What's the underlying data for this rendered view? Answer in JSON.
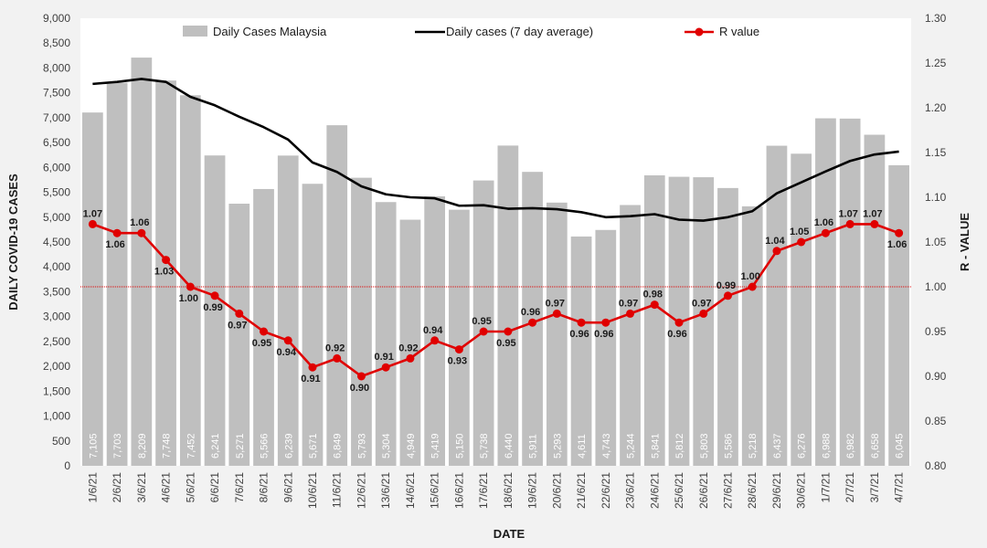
{
  "chart_data": {
    "type": "bar",
    "xlabel": "DATE",
    "ylabel": "DAILY COVID-19 CASES",
    "y2label": "R - VALUE",
    "ylim": [
      0,
      9000
    ],
    "y2lim": [
      0.8,
      1.3
    ],
    "yticks": [
      "0",
      "500",
      "1,000",
      "1,500",
      "2,000",
      "2,500",
      "3,000",
      "3,500",
      "4,000",
      "4,500",
      "5,000",
      "5,500",
      "6,000",
      "6,500",
      "7,000",
      "7,500",
      "8,000",
      "8,500",
      "9,000"
    ],
    "y2ticks": [
      "0.80",
      "0.85",
      "0.90",
      "0.95",
      "1.00",
      "1.05",
      "1.10",
      "1.15",
      "1.20",
      "1.25",
      "1.30"
    ],
    "reference_line_r": 1.0,
    "legend_position": "top",
    "categories": [
      "1/6/21",
      "2/6/21",
      "3/6/21",
      "4/6/21",
      "5/6/21",
      "6/6/21",
      "7/6/21",
      "8/6/21",
      "9/6/21",
      "10/6/21",
      "11/6/21",
      "12/6/21",
      "13/6/21",
      "14/6/21",
      "15/6/21",
      "16/6/21",
      "17/6/21",
      "18/6/21",
      "19/6/21",
      "20/6/21",
      "21/6/21",
      "22/6/21",
      "23/6/21",
      "24/6/21",
      "25/6/21",
      "26/6/21",
      "27/6/21",
      "28/6/21",
      "29/6/21",
      "30/6/21",
      "1/7/21",
      "2/7/21",
      "3/7/21",
      "4/7/21"
    ],
    "series": [
      {
        "name": "Daily Cases Malaysia",
        "type": "bar",
        "axis": "left",
        "color": "#bfbfbf",
        "values": [
          7105,
          7703,
          8209,
          7748,
          7452,
          6241,
          5271,
          5566,
          6239,
          5671,
          6849,
          5793,
          5304,
          4949,
          5419,
          5150,
          5738,
          6440,
          5911,
          5293,
          4611,
          4743,
          5244,
          5841,
          5812,
          5803,
          5586,
          5218,
          6437,
          6276,
          6988,
          6982,
          6658,
          6045
        ],
        "labels": [
          "7,105",
          "7,703",
          "8,209",
          "7,748",
          "7,452",
          "6,241",
          "5,271",
          "5,566",
          "6,239",
          "5,671",
          "6,849",
          "5,793",
          "5,304",
          "4,949",
          "5,419",
          "5,150",
          "5,738",
          "6,440",
          "5,911",
          "5,293",
          "4,611",
          "4,743",
          "5,244",
          "5,841",
          "5,812",
          "5,803",
          "5,586",
          "5,218",
          "6,437",
          "6,276",
          "6,988",
          "6,982",
          "6,658",
          "6,045"
        ]
      },
      {
        "name": "Daily cases (7 day average)",
        "type": "line",
        "axis": "left",
        "color": "#000000",
        "values": [
          7680,
          7720,
          7780,
          7720,
          7420,
          7250,
          7020,
          6810,
          6560,
          6100,
          5910,
          5620,
          5460,
          5400,
          5380,
          5230,
          5240,
          5170,
          5180,
          5160,
          5100,
          5000,
          5020,
          5060,
          4950,
          4930,
          5000,
          5120,
          5480,
          5700,
          5920,
          6130,
          6260,
          6320
        ]
      },
      {
        "name": "R value",
        "type": "line",
        "axis": "right",
        "color": "#e00000",
        "values": [
          1.07,
          1.06,
          1.06,
          1.03,
          1.0,
          0.99,
          0.97,
          0.95,
          0.94,
          0.91,
          0.92,
          0.9,
          0.91,
          0.92,
          0.94,
          0.93,
          0.95,
          0.95,
          0.96,
          0.97,
          0.96,
          0.96,
          0.97,
          0.98,
          0.96,
          0.97,
          0.99,
          1.0,
          1.04,
          1.05,
          1.06,
          1.07,
          1.07,
          1.06
        ],
        "labels": [
          "1.07",
          "1.06",
          "1.06",
          "1.03",
          "1.00",
          "0.99",
          "0.97",
          "0.95",
          "0.94",
          "0.91",
          "0.92",
          "0.90",
          "0.91",
          "0.92",
          "0.94",
          "0.93",
          "0.95",
          "0.95",
          "0.96",
          "0.97",
          "0.96",
          "0.96",
          "0.97",
          "0.98",
          "0.96",
          "0.97",
          "0.99",
          "1.00",
          "1.04",
          "1.05",
          "1.06",
          "1.07",
          "1.07",
          "1.06"
        ]
      }
    ]
  },
  "colors": {
    "background": "#f2f2f2",
    "plot_background": "#ffffff",
    "reference_line": "#e00000",
    "axis": "#8c8c8c",
    "tick_text": "#404040"
  }
}
